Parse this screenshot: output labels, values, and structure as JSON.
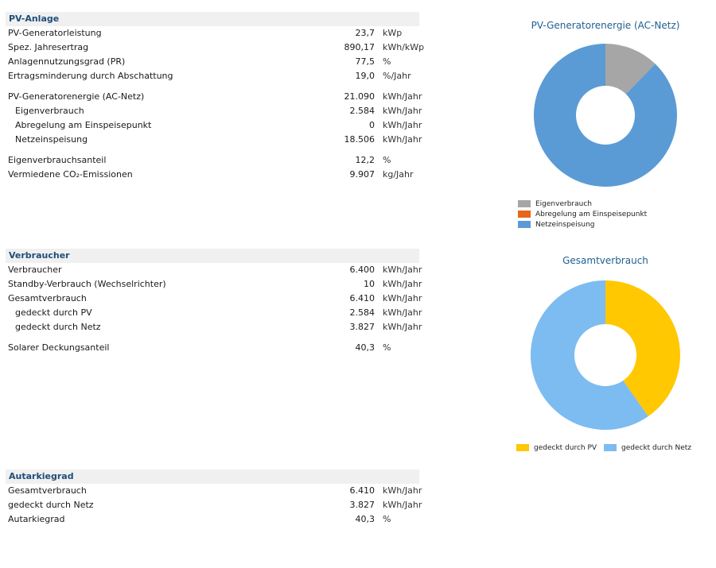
{
  "pv_anlage": {
    "title": "PV-Anlage",
    "rows": [
      {
        "label": "PV-Generatorleistung",
        "value": "23,7",
        "unit": "kWp"
      },
      {
        "label": "Spez. Jahresertrag",
        "value": "890,17",
        "unit": "kWh/kWp"
      },
      {
        "label": "Anlagennutzungsgrad (PR)",
        "value": "77,5",
        "unit": "%"
      },
      {
        "label": "Ertragsminderung durch Abschattung",
        "value": "19,0",
        "unit": "%/Jahr"
      },
      {
        "label": "PV-Generatorenergie (AC-Netz)",
        "value": "21.090",
        "unit": "kWh/Jahr"
      },
      {
        "label": "Eigenverbrauch",
        "value": "2.584",
        "unit": "kWh/Jahr"
      },
      {
        "label": "Abregelung am Einspeisepunkt",
        "value": "0",
        "unit": "kWh/Jahr"
      },
      {
        "label": "Netzeinspeisung",
        "value": "18.506",
        "unit": "kWh/Jahr"
      },
      {
        "label": "Eigenverbrauchsanteil",
        "value": "12,2",
        "unit": "%"
      },
      {
        "label": "Vermiedene CO₂-Emissionen",
        "value": "9.907",
        "unit": "kg/Jahr"
      }
    ]
  },
  "verbraucher": {
    "title": "Verbraucher",
    "rows": [
      {
        "label": "Verbraucher",
        "value": "6.400",
        "unit": "kWh/Jahr"
      },
      {
        "label": "Standby-Verbrauch (Wechselrichter)",
        "value": "10",
        "unit": "kWh/Jahr"
      },
      {
        "label": "Gesamtverbrauch",
        "value": "6.410",
        "unit": "kWh/Jahr"
      },
      {
        "label": "gedeckt durch PV",
        "value": "2.584",
        "unit": "kWh/Jahr"
      },
      {
        "label": "gedeckt durch Netz",
        "value": "3.827",
        "unit": "kWh/Jahr"
      },
      {
        "label": "Solarer Deckungsanteil",
        "value": "40,3",
        "unit": "%"
      }
    ]
  },
  "autarkiegrad": {
    "title": "Autarkiegrad",
    "rows": [
      {
        "label": "Gesamtverbrauch",
        "value": "6.410",
        "unit": "kWh/Jahr"
      },
      {
        "label": "gedeckt durch Netz",
        "value": "3.827",
        "unit": "kWh/Jahr"
      },
      {
        "label": "Autarkiegrad",
        "value": "40,3",
        "unit": "%"
      }
    ]
  },
  "chart_data": [
    {
      "type": "pie",
      "title": "PV-Generatorenergie (AC-Netz)",
      "categories": [
        "Eigenverbrauch",
        "Abregelung am Einspeisepunkt",
        "Netzeinspeisung"
      ],
      "values": [
        2584,
        0,
        18506
      ],
      "colors": [
        "#a6a6a6",
        "#e8651a",
        "#5b9bd5"
      ],
      "legend": "bottom"
    },
    {
      "type": "pie",
      "title": "Gesamtverbrauch",
      "categories": [
        "gedeckt durch PV",
        "gedeckt durch Netz"
      ],
      "values": [
        2584,
        3827
      ],
      "colors": [
        "#ffc800",
        "#7dbcf0"
      ],
      "legend": "bottom"
    }
  ]
}
